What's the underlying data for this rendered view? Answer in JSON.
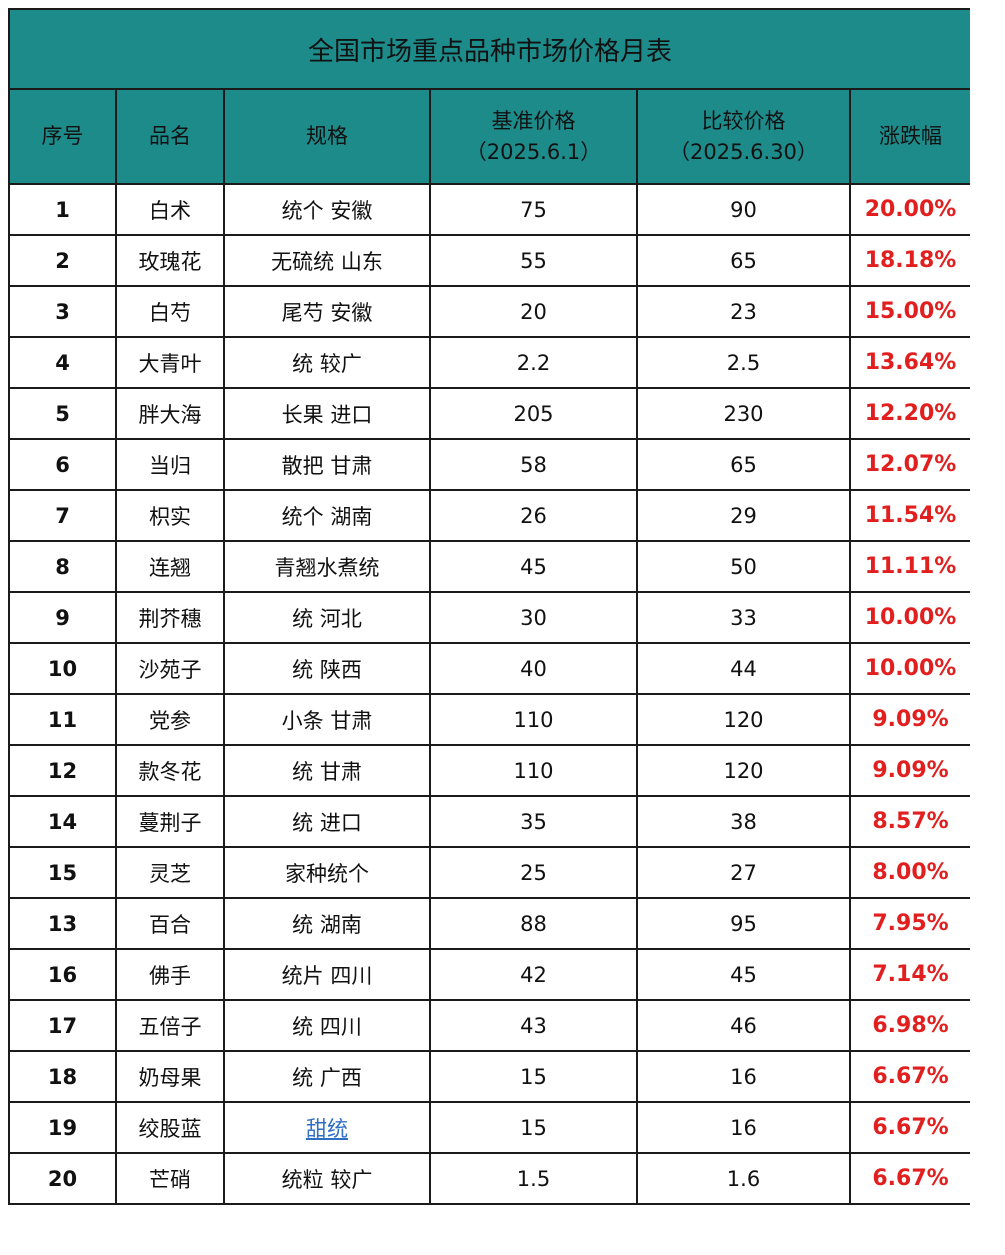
{
  "table": {
    "title": "全国市场重点品种市场价格月表",
    "headers": {
      "seq": "序号",
      "name": "品名",
      "spec": "规格",
      "base_line1": "基准价格",
      "base_line2": "（2025.6.1）",
      "cmp_line1": "比较价格",
      "cmp_line2": "（2025.6.30）",
      "change": "涨跌幅"
    },
    "rows": [
      {
        "seq": "1",
        "name": "白术",
        "spec": "统个 安徽",
        "base": "75",
        "cmp": "90",
        "change": "20.00%"
      },
      {
        "seq": "2",
        "name": "玫瑰花",
        "spec": "无硫统 山东",
        "base": "55",
        "cmp": "65",
        "change": "18.18%"
      },
      {
        "seq": "3",
        "name": "白芍",
        "spec": "尾芍 安徽",
        "base": "20",
        "cmp": "23",
        "change": "15.00%"
      },
      {
        "seq": "4",
        "name": "大青叶",
        "spec": "统 较广",
        "base": "2.2",
        "cmp": "2.5",
        "change": "13.64%"
      },
      {
        "seq": "5",
        "name": "胖大海",
        "spec": "长果 进口",
        "base": "205",
        "cmp": "230",
        "change": "12.20%"
      },
      {
        "seq": "6",
        "name": "当归",
        "spec": "散把 甘肃",
        "base": "58",
        "cmp": "65",
        "change": "12.07%"
      },
      {
        "seq": "7",
        "name": "枳实",
        "spec": "统个 湖南",
        "base": "26",
        "cmp": "29",
        "change": "11.54%"
      },
      {
        "seq": "8",
        "name": "连翘",
        "spec": "青翘水煮统",
        "base": "45",
        "cmp": "50",
        "change": "11.11%"
      },
      {
        "seq": "9",
        "name": "荆芥穗",
        "spec": "统 河北",
        "base": "30",
        "cmp": "33",
        "change": "10.00%"
      },
      {
        "seq": "10",
        "name": "沙苑子",
        "spec": "统 陕西",
        "base": "40",
        "cmp": "44",
        "change": "10.00%"
      },
      {
        "seq": "11",
        "name": "党参",
        "spec": "小条 甘肃",
        "base": "110",
        "cmp": "120",
        "change": "9.09%"
      },
      {
        "seq": "12",
        "name": "款冬花",
        "spec": "统 甘肃",
        "base": "110",
        "cmp": "120",
        "change": "9.09%"
      },
      {
        "seq": "14",
        "name": "蔓荆子",
        "spec": "统 进口",
        "base": "35",
        "cmp": "38",
        "change": "8.57%"
      },
      {
        "seq": "15",
        "name": "灵芝",
        "spec": "家种统个",
        "base": "25",
        "cmp": "27",
        "change": "8.00%"
      },
      {
        "seq": "13",
        "name": "百合",
        "spec": "统 湖南",
        "base": "88",
        "cmp": "95",
        "change": "7.95%"
      },
      {
        "seq": "16",
        "name": "佛手",
        "spec": "统片 四川",
        "base": "42",
        "cmp": "45",
        "change": "7.14%"
      },
      {
        "seq": "17",
        "name": "五倍子",
        "spec": "统 四川",
        "base": "43",
        "cmp": "46",
        "change": "6.98%"
      },
      {
        "seq": "18",
        "name": "奶母果",
        "spec": "统 广西",
        "base": "15",
        "cmp": "16",
        "change": "6.67%"
      },
      {
        "seq": "19",
        "name": "绞股蓝",
        "spec": "甜统",
        "base": "15",
        "cmp": "16",
        "change": "6.67%"
      },
      {
        "seq": "20",
        "name": "芒硝",
        "spec": "统粒 较广",
        "base": "1.5",
        "cmp": "1.6",
        "change": "6.67%"
      }
    ]
  },
  "colors": {
    "header_bg": "#1e8b8b",
    "change_text": "#e21f1f",
    "link_text": "#2e6fc5",
    "border": "#1b1b1b"
  }
}
